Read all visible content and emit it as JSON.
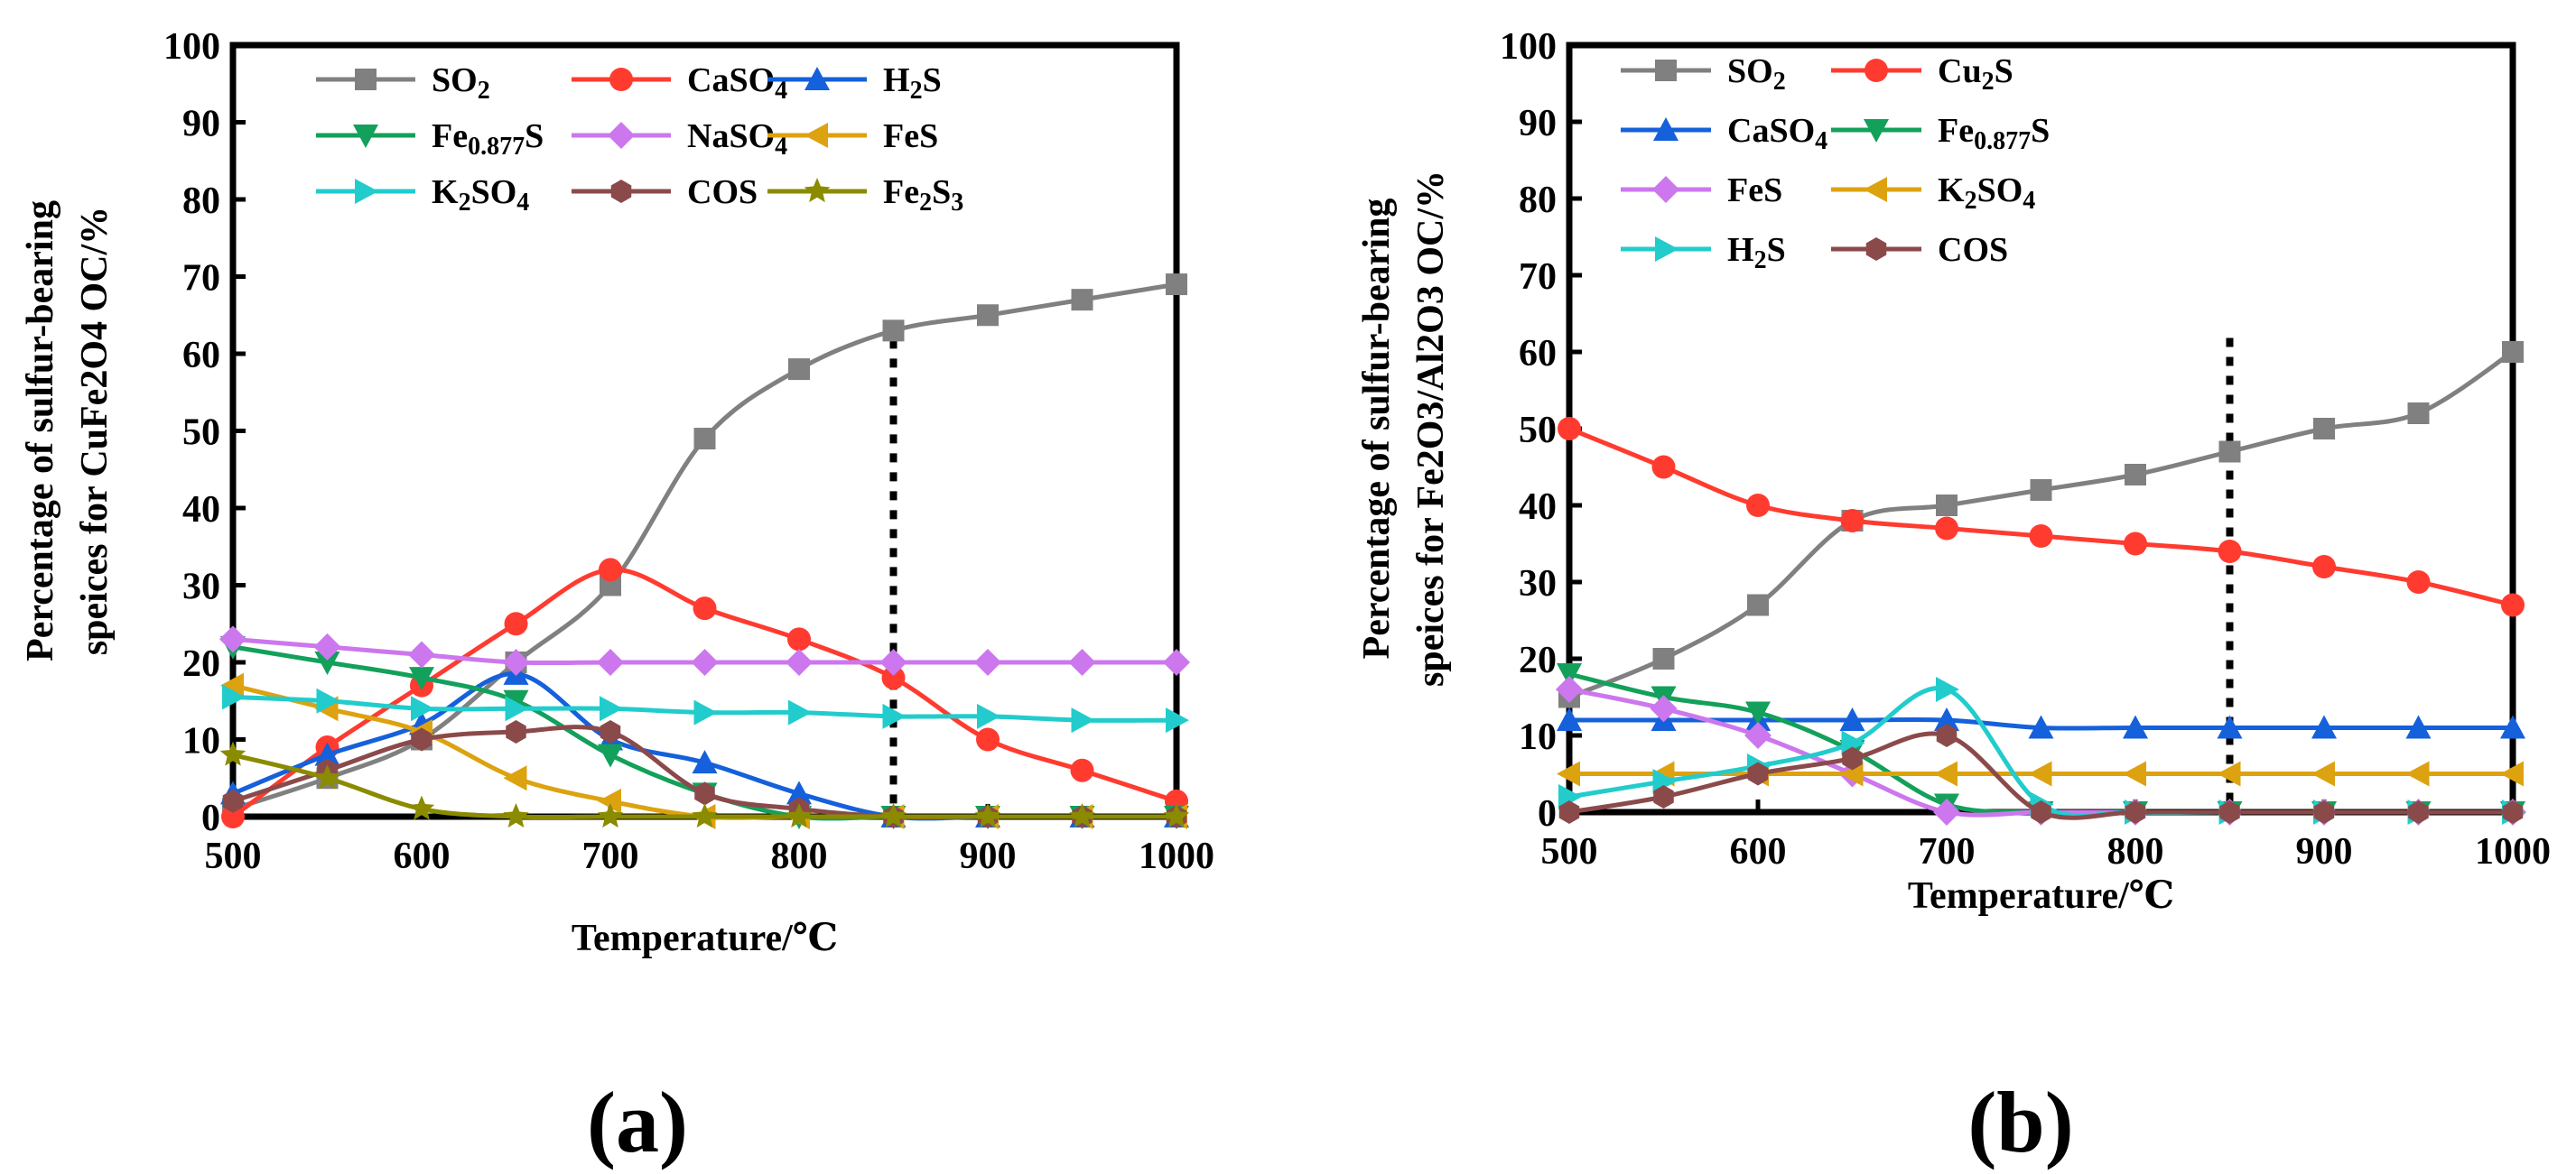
{
  "panels": [
    {
      "panel_label": "(a)",
      "chart_data": {
        "type": "line",
        "xlabel": "Temperature/℃",
        "ylabel_line1": "Percentage of  sulfur-bearing",
        "ylabel_line2": "speices for CuFe2O4 OC/%",
        "xlim": [
          500,
          1000
        ],
        "ylim": [
          0,
          100
        ],
        "xticks": [
          "500",
          "600",
          "700",
          "800",
          "900",
          "1000"
        ],
        "yticks": [
          "0",
          "10",
          "20",
          "30",
          "40",
          "50",
          "60",
          "70",
          "80",
          "90",
          "100"
        ],
        "vline_x": 850,
        "series": [
          {
            "name": "SO2",
            "label": [
              "SO",
              {
                "sub": "2"
              }
            ],
            "color": "#808080",
            "marker": "square",
            "points": [
              [
                500,
                1
              ],
              [
                550,
                5
              ],
              [
                600,
                10
              ],
              [
                650,
                20
              ],
              [
                700,
                30
              ],
              [
                750,
                49
              ],
              [
                800,
                58
              ],
              [
                850,
                63
              ],
              [
                900,
                65
              ],
              [
                950,
                67
              ],
              [
                1000,
                69
              ]
            ]
          },
          {
            "name": "CaSO4",
            "label": [
              "CaSO",
              {
                "sub": "4"
              }
            ],
            "color": "#FF3B30",
            "marker": "circle",
            "points": [
              [
                500,
                0
              ],
              [
                550,
                9
              ],
              [
                600,
                17
              ],
              [
                650,
                25
              ],
              [
                700,
                32
              ],
              [
                750,
                27
              ],
              [
                800,
                23
              ],
              [
                850,
                18
              ],
              [
                900,
                10
              ],
              [
                950,
                6
              ],
              [
                1000,
                2
              ]
            ]
          },
          {
            "name": "H2S",
            "label": [
              "H",
              {
                "sub": "2"
              },
              "S"
            ],
            "color": "#1560DB",
            "marker": "triangle-up",
            "points": [
              [
                500,
                3
              ],
              [
                550,
                8
              ],
              [
                600,
                12
              ],
              [
                650,
                18.5
              ],
              [
                700,
                10
              ],
              [
                750,
                7
              ],
              [
                800,
                3
              ],
              [
                850,
                0
              ],
              [
                900,
                0
              ],
              [
                950,
                0
              ],
              [
                1000,
                0
              ]
            ]
          },
          {
            "name": "Fe0.877S",
            "label": [
              "Fe",
              {
                "sub": "0.877"
              },
              "S"
            ],
            "color": "#13A05A",
            "marker": "triangle-down",
            "points": [
              [
                500,
                22
              ],
              [
                550,
                20
              ],
              [
                600,
                18
              ],
              [
                650,
                15
              ],
              [
                700,
                8
              ],
              [
                750,
                3
              ],
              [
                800,
                0
              ],
              [
                850,
                0
              ],
              [
                900,
                0
              ],
              [
                950,
                0
              ],
              [
                1000,
                0
              ]
            ]
          },
          {
            "name": "NaSO4",
            "label": [
              "NaSO",
              {
                "sub": "4"
              }
            ],
            "color": "#CC77EE",
            "marker": "diamond",
            "points": [
              [
                500,
                23
              ],
              [
                550,
                22
              ],
              [
                600,
                21
              ],
              [
                650,
                20
              ],
              [
                700,
                20
              ],
              [
                750,
                20
              ],
              [
                800,
                20
              ],
              [
                850,
                20
              ],
              [
                900,
                20
              ],
              [
                950,
                20
              ],
              [
                1000,
                20
              ]
            ]
          },
          {
            "name": "FeS",
            "label": [
              "FeS"
            ],
            "color": "#DDA20F",
            "marker": "triangle-left",
            "points": [
              [
                500,
                17
              ],
              [
                550,
                14
              ],
              [
                600,
                11
              ],
              [
                650,
                5
              ],
              [
                700,
                2
              ],
              [
                750,
                0
              ],
              [
                800,
                0
              ],
              [
                850,
                0
              ],
              [
                900,
                0
              ],
              [
                950,
                0
              ],
              [
                1000,
                0
              ]
            ]
          },
          {
            "name": "K2SO4",
            "label": [
              "K",
              {
                "sub": "2"
              },
              "SO",
              {
                "sub": "4"
              }
            ],
            "color": "#22CCCC",
            "marker": "triangle-right",
            "points": [
              [
                500,
                15.5
              ],
              [
                550,
                15
              ],
              [
                600,
                14
              ],
              [
                650,
                14
              ],
              [
                700,
                14
              ],
              [
                750,
                13.5
              ],
              [
                800,
                13.5
              ],
              [
                850,
                13
              ],
              [
                900,
                13
              ],
              [
                950,
                12.5
              ],
              [
                1000,
                12.5
              ]
            ]
          },
          {
            "name": "COS",
            "label": [
              "COS"
            ],
            "color": "#8B4A4A",
            "marker": "hexagon",
            "points": [
              [
                500,
                2
              ],
              [
                550,
                6
              ],
              [
                600,
                10
              ],
              [
                650,
                11
              ],
              [
                700,
                11
              ],
              [
                750,
                3
              ],
              [
                800,
                1
              ],
              [
                850,
                0
              ],
              [
                900,
                0
              ],
              [
                950,
                0
              ],
              [
                1000,
                0
              ]
            ]
          },
          {
            "name": "Fe2S3",
            "label": [
              "Fe",
              {
                "sub": "2"
              },
              "S",
              {
                "sub": "3"
              }
            ],
            "color": "#8B8B00",
            "marker": "star",
            "points": [
              [
                500,
                8
              ],
              [
                550,
                5
              ],
              [
                600,
                1
              ],
              [
                650,
                0
              ],
              [
                700,
                0
              ],
              [
                750,
                0
              ],
              [
                800,
                0
              ],
              [
                850,
                0
              ],
              [
                900,
                0
              ],
              [
                950,
                0
              ],
              [
                1000,
                0
              ]
            ]
          }
        ]
      }
    },
    {
      "panel_label": "(b)",
      "chart_data": {
        "type": "line",
        "xlabel": "Temperature/℃",
        "ylabel_line1": "Percentage of  sulfur-bearing",
        "ylabel_line2": "speices for Fe2O3/Al2O3 OC/%",
        "xlim": [
          500,
          1000
        ],
        "ylim": [
          0,
          100
        ],
        "xticks": [
          "500",
          "600",
          "700",
          "800",
          "900",
          "1000"
        ],
        "yticks": [
          "0",
          "10",
          "20",
          "30",
          "40",
          "50",
          "60",
          "70",
          "80",
          "90",
          "100"
        ],
        "vline_x": 850,
        "series": [
          {
            "name": "SO2",
            "label": [
              "SO",
              {
                "sub": "2"
              }
            ],
            "color": "#808080",
            "marker": "square",
            "points": [
              [
                500,
                15
              ],
              [
                550,
                20
              ],
              [
                600,
                27
              ],
              [
                650,
                38
              ],
              [
                700,
                40
              ],
              [
                750,
                42
              ],
              [
                800,
                44
              ],
              [
                850,
                47
              ],
              [
                900,
                50
              ],
              [
                950,
                52
              ],
              [
                1000,
                60
              ]
            ]
          },
          {
            "name": "Cu2S",
            "label": [
              "Cu",
              {
                "sub": "2"
              },
              "S"
            ],
            "color": "#FF3B30",
            "marker": "circle",
            "points": [
              [
                500,
                50
              ],
              [
                550,
                45
              ],
              [
                600,
                40
              ],
              [
                650,
                38
              ],
              [
                700,
                37
              ],
              [
                750,
                36
              ],
              [
                800,
                35
              ],
              [
                850,
                34
              ],
              [
                900,
                32
              ],
              [
                950,
                30
              ],
              [
                1000,
                27
              ]
            ]
          },
          {
            "name": "CaSO4",
            "label": [
              "CaSO",
              {
                "sub": "4"
              }
            ],
            "color": "#1560DB",
            "marker": "triangle-up",
            "points": [
              [
                500,
                12
              ],
              [
                550,
                12
              ],
              [
                600,
                12
              ],
              [
                650,
                12
              ],
              [
                700,
                12
              ],
              [
                750,
                11
              ],
              [
                800,
                11
              ],
              [
                850,
                11
              ],
              [
                900,
                11
              ],
              [
                950,
                11
              ],
              [
                1000,
                11
              ]
            ]
          },
          {
            "name": "Fe0.877S",
            "label": [
              "Fe",
              {
                "sub": "0.877"
              },
              "S"
            ],
            "color": "#13A05A",
            "marker": "triangle-down",
            "points": [
              [
                500,
                18
              ],
              [
                550,
                15
              ],
              [
                600,
                13
              ],
              [
                650,
                8
              ],
              [
                700,
                1
              ],
              [
                750,
                0
              ],
              [
                800,
                0
              ],
              [
                850,
                0
              ],
              [
                900,
                0
              ],
              [
                950,
                0
              ],
              [
                1000,
                0
              ]
            ]
          },
          {
            "name": "FeS",
            "label": [
              "FeS"
            ],
            "color": "#CC77EE",
            "marker": "diamond",
            "points": [
              [
                500,
                16
              ],
              [
                550,
                13.5
              ],
              [
                600,
                10
              ],
              [
                650,
                5
              ],
              [
                700,
                0
              ],
              [
                750,
                0
              ],
              [
                800,
                0
              ],
              [
                850,
                0
              ],
              [
                900,
                0
              ],
              [
                950,
                0
              ],
              [
                1000,
                0
              ]
            ]
          },
          {
            "name": "K2SO4",
            "label": [
              "K",
              {
                "sub": "2"
              },
              "SO",
              {
                "sub": "4"
              }
            ],
            "color": "#DDA20F",
            "marker": "triangle-left",
            "points": [
              [
                500,
                5
              ],
              [
                550,
                5
              ],
              [
                600,
                5
              ],
              [
                650,
                5
              ],
              [
                700,
                5
              ],
              [
                750,
                5
              ],
              [
                800,
                5
              ],
              [
                850,
                5
              ],
              [
                900,
                5
              ],
              [
                950,
                5
              ],
              [
                1000,
                5
              ]
            ]
          },
          {
            "name": "H2S",
            "label": [
              "H",
              {
                "sub": "2"
              },
              "S"
            ],
            "color": "#22CCCC",
            "marker": "triangle-right",
            "points": [
              [
                500,
                2
              ],
              [
                550,
                4
              ],
              [
                600,
                6
              ],
              [
                650,
                9
              ],
              [
                700,
                16
              ],
              [
                750,
                1
              ],
              [
                800,
                0
              ],
              [
                850,
                0
              ],
              [
                900,
                0
              ],
              [
                950,
                0
              ],
              [
                1000,
                0
              ]
            ]
          },
          {
            "name": "COS",
            "label": [
              "COS"
            ],
            "color": "#8B4A4A",
            "marker": "hexagon",
            "points": [
              [
                500,
                0
              ],
              [
                550,
                2
              ],
              [
                600,
                5
              ],
              [
                650,
                7
              ],
              [
                700,
                10
              ],
              [
                750,
                0
              ],
              [
                800,
                0
              ],
              [
                850,
                0
              ],
              [
                900,
                0
              ],
              [
                950,
                0
              ],
              [
                1000,
                0
              ]
            ]
          }
        ]
      }
    }
  ]
}
